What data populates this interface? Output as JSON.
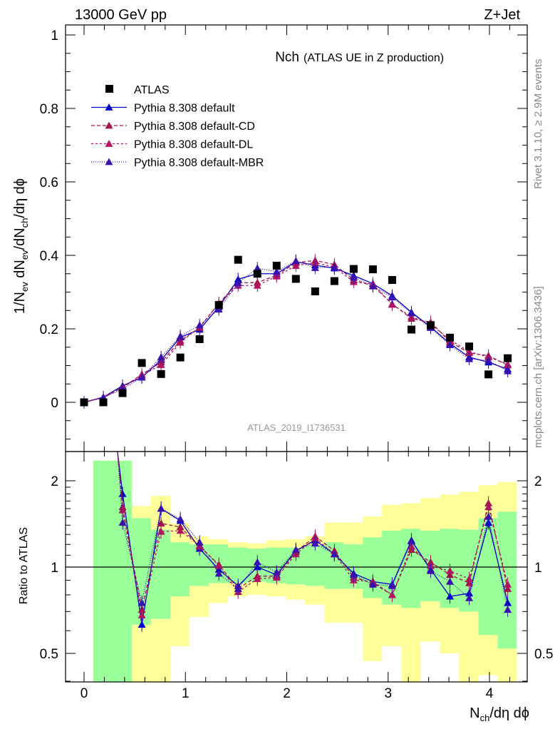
{
  "header": {
    "left": "13000 GeV pp",
    "right": "Z+Jet"
  },
  "side": {
    "rivet": "Rivet 3.1.10, ≥ 2.9M events",
    "mcplots": "mcplots.cern.ch [arXiv:1306.3436]"
  },
  "chart_data": [
    {
      "type": "scatter",
      "title": "Nch",
      "subtitle": "(ATLAS UE in Z production)",
      "ylabel": "1/N_ev dN_ev/dN_ch/dη dϕ",
      "xlabel": "N_ch/dη dϕ",
      "analysis_id": "ATLAS_2019_I1736531",
      "xlim": [
        -0.2,
        4.35
      ],
      "ylim": [
        -0.11,
        1.03
      ],
      "yticks": [
        "0",
        "0.2",
        "0.4",
        "0.6",
        "0.8",
        "1"
      ],
      "xticks": [
        "0",
        "1",
        "2",
        "3",
        "4"
      ],
      "legend_position": "top-left",
      "x": [
        0.0,
        0.19,
        0.38,
        0.57,
        0.76,
        0.95,
        1.14,
        1.33,
        1.52,
        1.71,
        1.9,
        2.09,
        2.28,
        2.47,
        2.66,
        2.85,
        3.04,
        3.23,
        3.42,
        3.61,
        3.8,
        3.99,
        4.18
      ],
      "series": [
        {
          "name": "ATLAS",
          "color": "#000000",
          "marker": "square",
          "values": [
            0.0,
            0.0,
            0.025,
            0.107,
            0.077,
            0.122,
            0.172,
            0.265,
            0.388,
            0.35,
            0.372,
            0.336,
            0.302,
            0.33,
            0.363,
            0.362,
            0.333,
            0.198,
            0.21,
            0.176,
            0.152,
            0.076,
            0.12
          ]
        },
        {
          "name": "Pythia 8.308 default",
          "color": "#0000cc",
          "marker": "triangle",
          "dash": "",
          "values": [
            0.0,
            0.014,
            0.045,
            0.068,
            0.115,
            0.177,
            0.198,
            0.26,
            0.335,
            0.35,
            0.35,
            0.383,
            0.373,
            0.365,
            0.345,
            0.323,
            0.29,
            0.245,
            0.205,
            0.16,
            0.123,
            0.109,
            0.09
          ]
        },
        {
          "name": "Pythia 8.308 default-CD",
          "color": "#a0144b",
          "marker": "triangle",
          "dash": "5,3",
          "values": [
            0.0,
            0.013,
            0.041,
            0.076,
            0.109,
            0.168,
            0.203,
            0.27,
            0.325,
            0.326,
            0.346,
            0.38,
            0.386,
            0.375,
            0.333,
            0.317,
            0.268,
            0.228,
            0.218,
            0.165,
            0.134,
            0.127,
            0.101
          ]
        },
        {
          "name": "Pythia 8.308 default-DL",
          "color": "#b01660",
          "marker": "triangle",
          "dash": "3,3",
          "values": [
            0.0,
            0.013,
            0.04,
            0.073,
            0.102,
            0.163,
            0.205,
            0.268,
            0.318,
            0.318,
            0.343,
            0.372,
            0.38,
            0.368,
            0.328,
            0.322,
            0.266,
            0.233,
            0.213,
            0.17,
            0.138,
            0.123,
            0.104
          ]
        },
        {
          "name": "Pythia 8.308 default-MBR",
          "color": "#3a10b0",
          "marker": "triangle",
          "dash": "1,2",
          "values": [
            0.0,
            0.013,
            0.036,
            0.068,
            0.123,
            0.18,
            0.21,
            0.253,
            0.325,
            0.365,
            0.356,
            0.385,
            0.366,
            0.368,
            0.34,
            0.316,
            0.286,
            0.243,
            0.203,
            0.156,
            0.118,
            0.114,
            0.085
          ]
        }
      ]
    },
    {
      "type": "scatter",
      "ylabel": "Ratio to ATLAS",
      "ylim": [
        0.35,
        2.35
      ],
      "log_scale_y": true,
      "yticks": [
        "0.5",
        "1",
        "2"
      ],
      "x": [
        0.38,
        0.57,
        0.76,
        0.95,
        1.14,
        1.33,
        1.52,
        1.71,
        1.9,
        2.09,
        2.28,
        2.47,
        2.66,
        2.85,
        3.04,
        3.23,
        3.42,
        3.61,
        3.8,
        3.99,
        4.18
      ],
      "bands": {
        "edges": [
          0.09,
          0.28,
          0.47,
          0.66,
          0.85,
          1.04,
          1.23,
          1.42,
          1.61,
          1.8,
          1.99,
          2.18,
          2.37,
          2.56,
          2.75,
          2.94,
          3.13,
          3.32,
          3.51,
          3.7,
          3.89,
          4.08,
          4.27
        ],
        "green_lo": [
          0.35,
          0.35,
          0.63,
          0.66,
          0.79,
          0.86,
          0.88,
          0.88,
          0.89,
          0.88,
          0.87,
          0.86,
          0.84,
          0.84,
          0.78,
          0.74,
          0.72,
          0.76,
          0.72,
          0.7,
          0.58,
          0.52
        ],
        "green_hi": [
          2.35,
          2.35,
          1.48,
          1.35,
          1.22,
          1.2,
          1.2,
          1.17,
          1.16,
          1.17,
          1.17,
          1.19,
          1.22,
          1.2,
          1.27,
          1.34,
          1.36,
          1.34,
          1.36,
          1.35,
          1.48,
          1.56
        ],
        "yellow_lo": [
          0.35,
          0.35,
          0.35,
          0.35,
          0.53,
          0.67,
          0.75,
          0.79,
          0.8,
          0.79,
          0.77,
          0.74,
          0.64,
          0.64,
          0.47,
          0.53,
          0.37,
          0.55,
          0.5,
          0.37,
          0.42,
          0.35
        ],
        "yellow_hi": [
          2.35,
          2.35,
          1.63,
          1.77,
          1.42,
          1.28,
          1.25,
          1.22,
          1.21,
          1.24,
          1.25,
          1.28,
          1.43,
          1.43,
          1.5,
          1.65,
          1.67,
          1.74,
          1.79,
          1.83,
          1.93,
          1.98
        ]
      },
      "series": [
        {
          "name": "Pythia 8.308 default",
          "values": [
            1.8,
            0.63,
            1.6,
            1.45,
            1.16,
            0.98,
            0.86,
            1.0,
            0.94,
            1.14,
            1.24,
            1.11,
            0.95,
            0.89,
            0.87,
            1.24,
            0.98,
            0.79,
            0.81,
            1.43,
            0.75
          ]
        },
        {
          "name": "Pythia 8.308 default-CD",
          "values": [
            1.62,
            0.71,
            1.42,
            1.38,
            1.18,
            1.02,
            0.84,
            0.93,
            0.93,
            1.13,
            1.28,
            1.14,
            0.92,
            0.88,
            0.8,
            1.15,
            1.04,
            0.94,
            0.88,
            1.67,
            0.84
          ]
        },
        {
          "name": "Pythia 8.308 default-DL",
          "values": [
            1.58,
            0.68,
            1.33,
            1.34,
            1.19,
            1.01,
            0.82,
            0.91,
            0.92,
            1.11,
            1.26,
            1.11,
            0.9,
            0.89,
            0.8,
            1.18,
            1.01,
            0.97,
            0.91,
            1.62,
            0.87
          ]
        },
        {
          "name": "Pythia 8.308 default-MBR",
          "values": [
            1.43,
            0.75,
            1.6,
            1.47,
            1.22,
            0.95,
            0.84,
            1.04,
            0.96,
            1.15,
            1.21,
            1.11,
            0.94,
            0.87,
            0.86,
            1.23,
            0.97,
            0.89,
            0.78,
            1.5,
            0.71
          ]
        }
      ]
    }
  ]
}
